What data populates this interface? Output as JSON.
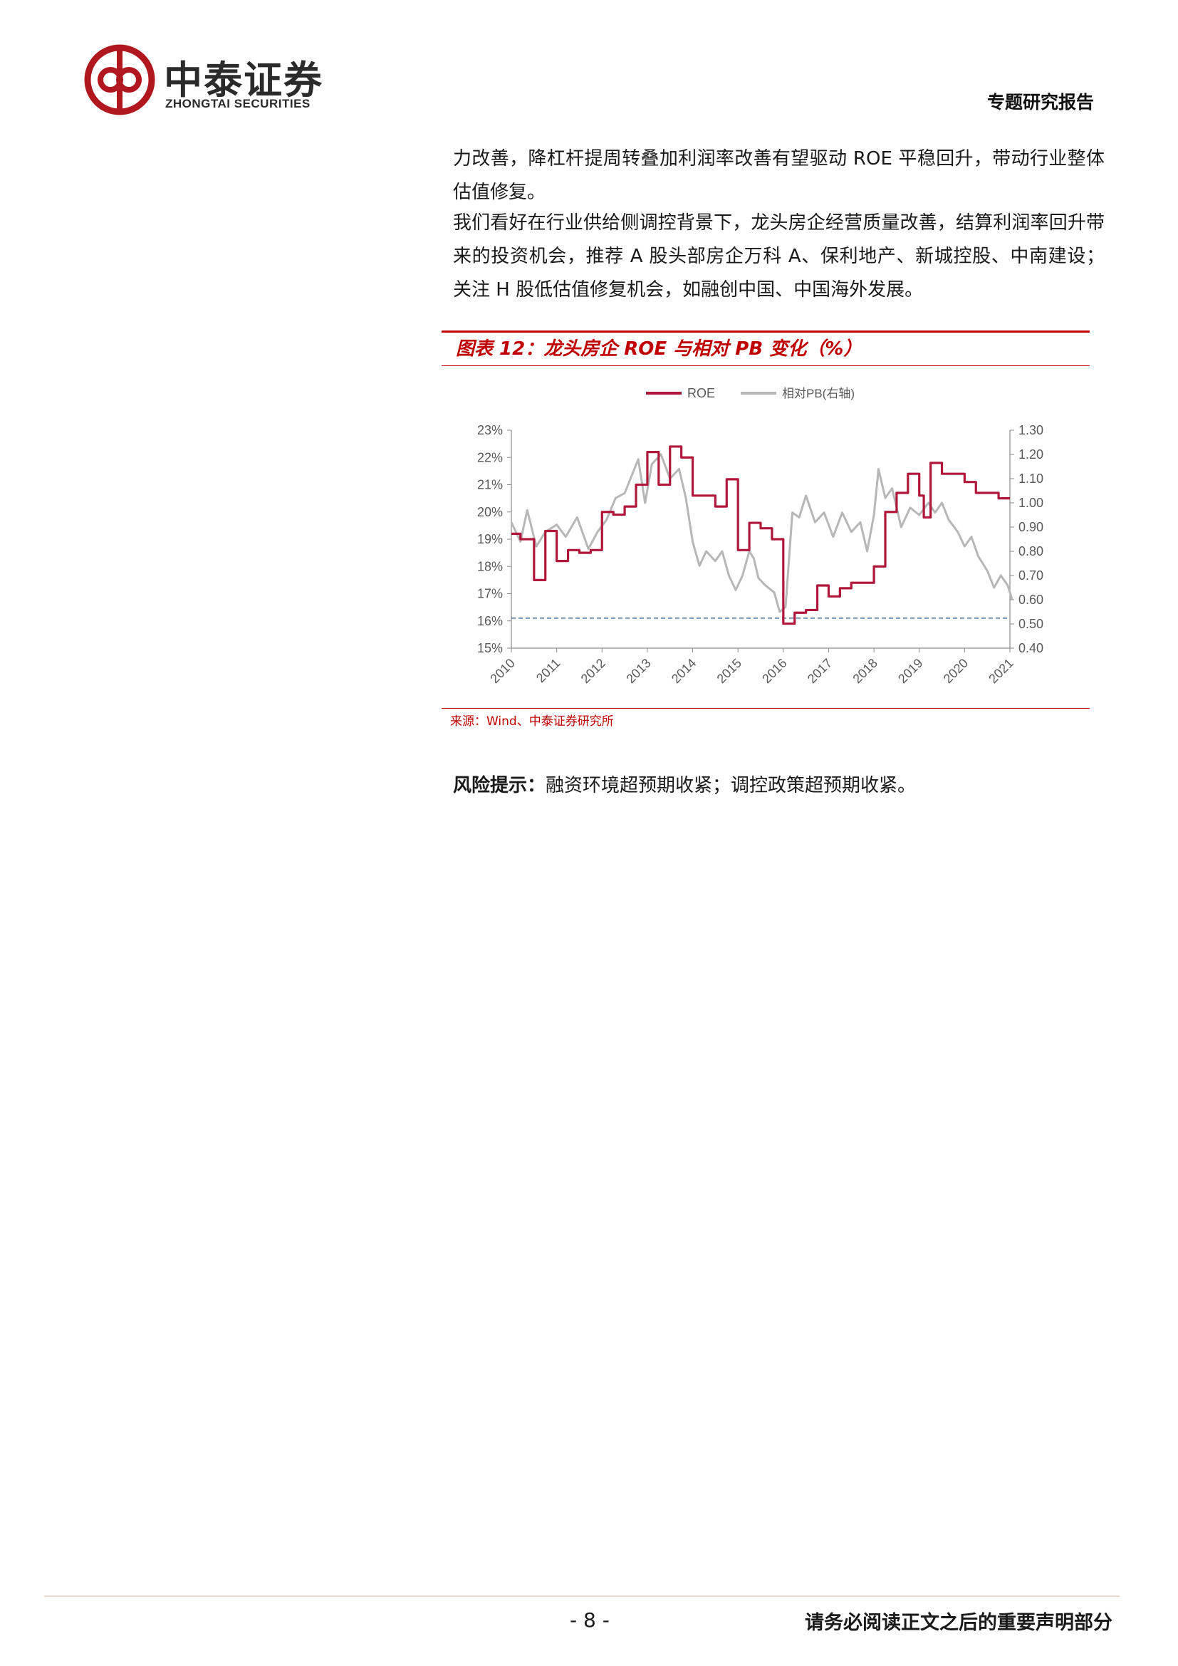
{
  "header": {
    "logo_cn": "中泰证券",
    "logo_en": "ZHONGTAI SECURITIES",
    "report_type": "专题研究报告",
    "brand_color": "#b0171f"
  },
  "body": {
    "paragraphs": [
      "力改善，降杠杆提周转叠加利润率改善有望驱动 ROE 平稳回升，带动行业整体估值修复。",
      "我们看好在行业供给侧调控背景下，龙头房企经营质量改善，结算利润率回升带来的投资机会，推荐 A 股头部房企万科 A、保利地产、新城控股、中南建设；关注 H 股低估值修复机会，如融创中国、中国海外发展。"
    ]
  },
  "figure": {
    "title": "图表 12：龙头房企 ROE 与相对 PB 变化（%）",
    "source": "来源：Wind、中泰证券研究所"
  },
  "chart_data": {
    "type": "line",
    "title": "",
    "legend": {
      "placement": "top-center",
      "entries": [
        "ROE",
        "相对PB(右轴)"
      ]
    },
    "x_ticks": [
      "2010",
      "2011",
      "2012",
      "2013",
      "2014",
      "2015",
      "2016",
      "2017",
      "2018",
      "2019",
      "2020",
      "2021"
    ],
    "y_left": {
      "ticks": [
        "15%",
        "16%",
        "17%",
        "18%",
        "19%",
        "20%",
        "21%",
        "22%",
        "23%"
      ],
      "range": [
        15,
        23
      ]
    },
    "y_right": {
      "ticks": [
        "0.40",
        "0.50",
        "0.60",
        "0.70",
        "0.80",
        "0.90",
        "1.00",
        "1.10",
        "1.20",
        "1.30"
      ],
      "range": [
        0.4,
        1.3
      ]
    },
    "reference_line": {
      "axis": "left",
      "value": 16.1,
      "style": "dashed",
      "color": "#4a6fa5"
    },
    "series": [
      {
        "name": "ROE",
        "axis": "left",
        "color": "#b0173a",
        "step": true,
        "points": [
          [
            2010.0,
            19.2
          ],
          [
            2010.2,
            19.0
          ],
          [
            2010.5,
            17.5
          ],
          [
            2010.75,
            19.3
          ],
          [
            2011.0,
            18.2
          ],
          [
            2011.25,
            18.6
          ],
          [
            2011.5,
            18.5
          ],
          [
            2011.75,
            18.6
          ],
          [
            2012.0,
            20.0
          ],
          [
            2012.25,
            19.9
          ],
          [
            2012.5,
            20.2
          ],
          [
            2012.75,
            21.0
          ],
          [
            2013.0,
            22.2
          ],
          [
            2013.25,
            21.0
          ],
          [
            2013.5,
            22.4
          ],
          [
            2013.75,
            22.0
          ],
          [
            2014.0,
            20.6
          ],
          [
            2014.5,
            20.2
          ],
          [
            2014.75,
            21.2
          ],
          [
            2015.0,
            18.6
          ],
          [
            2015.25,
            19.6
          ],
          [
            2015.5,
            19.4
          ],
          [
            2015.75,
            19.0
          ],
          [
            2016.0,
            15.9
          ],
          [
            2016.25,
            16.3
          ],
          [
            2016.5,
            16.4
          ],
          [
            2016.75,
            17.3
          ],
          [
            2017.0,
            16.9
          ],
          [
            2017.25,
            17.2
          ],
          [
            2017.5,
            17.4
          ],
          [
            2018.0,
            18.0
          ],
          [
            2018.25,
            20.0
          ],
          [
            2018.5,
            20.7
          ],
          [
            2018.75,
            21.4
          ],
          [
            2019.0,
            20.6
          ],
          [
            2019.1,
            19.8
          ],
          [
            2019.25,
            21.8
          ],
          [
            2019.5,
            21.4
          ],
          [
            2020.0,
            21.1
          ],
          [
            2020.25,
            20.7
          ],
          [
            2020.75,
            20.5
          ],
          [
            2021.0,
            20.5
          ]
        ]
      },
      {
        "name": "相对PB(右轴)",
        "axis": "right",
        "color": "#b7b7b7",
        "step": false,
        "points": [
          [
            2010.0,
            0.92
          ],
          [
            2010.2,
            0.84
          ],
          [
            2010.35,
            0.97
          ],
          [
            2010.55,
            0.82
          ],
          [
            2010.75,
            0.88
          ],
          [
            2011.0,
            0.91
          ],
          [
            2011.2,
            0.86
          ],
          [
            2011.45,
            0.94
          ],
          [
            2011.7,
            0.81
          ],
          [
            2011.9,
            0.88
          ],
          [
            2012.1,
            0.93
          ],
          [
            2012.3,
            1.02
          ],
          [
            2012.5,
            1.04
          ],
          [
            2012.65,
            1.11
          ],
          [
            2012.8,
            1.18
          ],
          [
            2012.95,
            1.0
          ],
          [
            2013.1,
            1.16
          ],
          [
            2013.3,
            1.2
          ],
          [
            2013.5,
            1.1
          ],
          [
            2013.7,
            1.14
          ],
          [
            2013.85,
            1.02
          ],
          [
            2014.0,
            0.84
          ],
          [
            2014.15,
            0.74
          ],
          [
            2014.3,
            0.8
          ],
          [
            2014.5,
            0.76
          ],
          [
            2014.65,
            0.8
          ],
          [
            2014.8,
            0.7
          ],
          [
            2014.95,
            0.64
          ],
          [
            2015.1,
            0.7
          ],
          [
            2015.25,
            0.8
          ],
          [
            2015.35,
            0.77
          ],
          [
            2015.45,
            0.69
          ],
          [
            2015.6,
            0.66
          ],
          [
            2015.8,
            0.63
          ],
          [
            2015.92,
            0.55
          ],
          [
            2016.05,
            0.57
          ],
          [
            2016.2,
            0.96
          ],
          [
            2016.35,
            0.94
          ],
          [
            2016.5,
            1.03
          ],
          [
            2016.7,
            0.92
          ],
          [
            2016.9,
            0.96
          ],
          [
            2017.1,
            0.86
          ],
          [
            2017.3,
            0.96
          ],
          [
            2017.5,
            0.88
          ],
          [
            2017.7,
            0.92
          ],
          [
            2017.85,
            0.8
          ],
          [
            2018.0,
            0.95
          ],
          [
            2018.1,
            1.14
          ],
          [
            2018.25,
            1.02
          ],
          [
            2018.4,
            1.06
          ],
          [
            2018.6,
            0.9
          ],
          [
            2018.8,
            0.98
          ],
          [
            2019.0,
            0.95
          ],
          [
            2019.2,
            1.0
          ],
          [
            2019.35,
            0.96
          ],
          [
            2019.5,
            1.0
          ],
          [
            2019.65,
            0.93
          ],
          [
            2019.85,
            0.88
          ],
          [
            2020.0,
            0.82
          ],
          [
            2020.15,
            0.86
          ],
          [
            2020.3,
            0.78
          ],
          [
            2020.5,
            0.72
          ],
          [
            2020.65,
            0.65
          ],
          [
            2020.8,
            0.7
          ],
          [
            2020.95,
            0.66
          ],
          [
            2021.05,
            0.6
          ]
        ]
      }
    ]
  },
  "risk": {
    "label": "风险提示：",
    "text": "融资环境超预期收紧；调控政策超预期收紧。"
  },
  "footer": {
    "page": "- 8 -",
    "disclaimer": "请务必阅读正文之后的重要声明部分"
  }
}
